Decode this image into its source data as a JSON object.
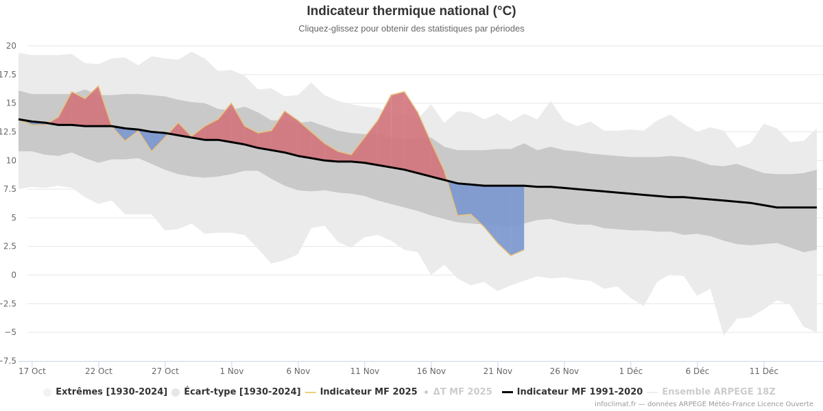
{
  "header": {
    "title": "Indicateur thermique national (°C)",
    "subtitle": "Cliquez-glissez pour obtenir des statistiques par périodes"
  },
  "credits": "infoclimat.fr — données ARPEGE Météo-France Licence Ouverte",
  "colors": {
    "extremes": "#ebebeb",
    "ecart_type": "#c9c9c9",
    "mf2025_line": "#e8c07a",
    "warm_anomaly": "#d1737a",
    "cold_anomaly": "#7a97cf",
    "normal_line": "#000000",
    "grid": "#e6e6e6",
    "legend_hidden": "#cccccc"
  },
  "legend": [
    {
      "label": "Extrêmes [1930-2024]",
      "symbol": "dot",
      "color": "#f2f2f2",
      "hidden": false
    },
    {
      "label": "Écart-type [1930-2024]",
      "symbol": "dot",
      "color": "#e6e6e6",
      "hidden": false
    },
    {
      "label": "Indicateur MF 2025",
      "symbol": "line",
      "color": "#e8d27a",
      "hidden": false
    },
    {
      "label": "ΔT MF 2025",
      "symbol": "small-dot",
      "color": "#cccccc",
      "hidden": true
    },
    {
      "label": "Indicateur MF 1991-2020",
      "symbol": "line-thick",
      "color": "#000000",
      "hidden": false
    },
    {
      "label": "Ensemble ARPEGE 18Z",
      "symbol": "line",
      "color": "#eeeeee",
      "hidden": true
    }
  ],
  "chart_data": {
    "type": "area",
    "title": "Indicateur thermique national (°C)",
    "subtitle": "Cliquez-glissez pour obtenir des statistiques par périodes",
    "xlabel": "",
    "ylabel": "",
    "ylim": [
      -7.5,
      20
    ],
    "yticks": [
      20,
      17.5,
      15,
      12.5,
      10,
      7.5,
      5,
      2.5,
      0,
      -2.5,
      -5,
      -7.5
    ],
    "ytick_labels": [
      "20",
      "17.5",
      "15",
      "12.5",
      "10",
      "7.5",
      "5",
      "2.5",
      "0",
      "−2.5",
      "−5",
      "−7.5"
    ],
    "x_start": "16 Oct",
    "x_step_days": 1,
    "xticks": [
      {
        "day_index": 1,
        "label": "17 Oct"
      },
      {
        "day_index": 6,
        "label": "22 Oct"
      },
      {
        "day_index": 11,
        "label": "27 Oct"
      },
      {
        "day_index": 16,
        "label": "1 Nov"
      },
      {
        "day_index": 21,
        "label": "6 Nov"
      },
      {
        "day_index": 26,
        "label": "11 Nov"
      },
      {
        "day_index": 31,
        "label": "16 Nov"
      },
      {
        "day_index": 36,
        "label": "21 Nov"
      },
      {
        "day_index": 41,
        "label": "26 Nov"
      },
      {
        "day_index": 46,
        "label": "1 Déc"
      },
      {
        "day_index": 51,
        "label": "6 Déc"
      },
      {
        "day_index": 56,
        "label": "11 Déc"
      }
    ],
    "grid": true,
    "legend_position": "bottom",
    "series": [
      {
        "name": "Extrêmes [1930-2024]",
        "kind": "arearange",
        "high": [
          19.4,
          19.2,
          19.2,
          19.2,
          19.3,
          18.5,
          18.4,
          18.9,
          19.0,
          18.3,
          19.1,
          18.9,
          18.8,
          19.5,
          18.9,
          17.8,
          17.9,
          17.4,
          16.2,
          16.3,
          15.6,
          15.7,
          16.8,
          15.7,
          15.2,
          14.9,
          14.7,
          14.6,
          14.2,
          14.0,
          13.6,
          14.9,
          13.3,
          14.3,
          14.2,
          13.6,
          14.1,
          13.4,
          14.1,
          13.6,
          15.2,
          13.5,
          13.0,
          13.4,
          12.6,
          12.6,
          12.7,
          12.6,
          13.5,
          14.0,
          13.2,
          12.5,
          12.9,
          12.6,
          11.1,
          11.5,
          13.2,
          12.8,
          11.6,
          11.7,
          12.8
        ],
        "low": [
          7.5,
          7.7,
          7.6,
          7.8,
          7.6,
          6.8,
          6.2,
          6.5,
          5.3,
          5.3,
          5.3,
          3.9,
          4.0,
          4.5,
          3.6,
          3.7,
          3.7,
          3.5,
          2.3,
          1.0,
          1.3,
          1.8,
          4.1,
          4.3,
          2.9,
          2.4,
          3.3,
          3.5,
          3.0,
          2.2,
          2.0,
          0.0,
          0.9,
          -0.3,
          -0.9,
          -0.6,
          -1.4,
          -0.9,
          -0.5,
          -0.1,
          -0.3,
          -0.2,
          -0.4,
          -0.5,
          -1.2,
          -1.0,
          -2.0,
          -2.7,
          -0.6,
          0.1,
          -0.1,
          -1.8,
          -1.2,
          -5.3,
          -3.8,
          -3.7,
          -3.0,
          -2.2,
          -2.6,
          -4.5,
          -5.0
        ]
      },
      {
        "name": "Écart-type [1930-2024]",
        "kind": "arearange",
        "high": [
          16.1,
          15.8,
          15.8,
          15.8,
          15.8,
          16.2,
          15.7,
          15.7,
          15.8,
          15.8,
          15.7,
          15.6,
          15.3,
          15.1,
          15.0,
          14.5,
          14.4,
          14.7,
          14.2,
          13.5,
          13.5,
          13.3,
          13.4,
          13.0,
          12.6,
          12.4,
          12.3,
          12.3,
          12.0,
          11.9,
          11.9,
          12.0,
          11.2,
          10.9,
          10.9,
          10.9,
          11.0,
          11.0,
          11.5,
          10.9,
          11.2,
          10.9,
          10.8,
          10.6,
          10.5,
          10.4,
          10.3,
          10.3,
          10.3,
          10.4,
          10.3,
          10.0,
          9.6,
          9.5,
          9.7,
          9.3,
          8.9,
          8.8,
          8.8,
          8.9,
          9.2
        ],
        "low": [
          10.8,
          10.8,
          10.5,
          10.4,
          10.7,
          10.2,
          9.8,
          10.1,
          10.1,
          10.2,
          9.7,
          9.2,
          8.8,
          8.6,
          8.5,
          8.6,
          8.8,
          9.1,
          9.1,
          8.4,
          7.8,
          7.4,
          7.3,
          7.4,
          7.2,
          7.1,
          6.9,
          6.5,
          6.2,
          5.9,
          5.6,
          5.2,
          4.9,
          4.6,
          4.5,
          4.4,
          4.4,
          4.2,
          4.5,
          4.8,
          4.9,
          4.6,
          4.4,
          4.4,
          4.1,
          4.0,
          3.9,
          3.9,
          3.8,
          3.8,
          3.5,
          3.6,
          3.4,
          3.0,
          2.7,
          2.6,
          2.7,
          2.8,
          2.4,
          2.0,
          2.2
        ]
      },
      {
        "name": "Indicateur MF 2025",
        "kind": "line",
        "values": [
          13.6,
          13.1,
          13.1,
          13.8,
          16.0,
          15.4,
          16.5,
          13.0,
          11.7,
          12.6,
          10.8,
          12.0,
          13.3,
          12.1,
          13.0,
          13.6,
          15.0,
          13.0,
          12.4,
          12.6,
          14.3,
          13.5,
          12.5,
          11.5,
          10.8,
          10.5,
          12.0,
          13.5,
          15.7,
          16.0,
          14.2,
          11.6,
          9.1,
          5.2,
          5.3,
          4.2,
          2.8,
          1.7,
          2.2
        ]
      },
      {
        "name": "Indicateur MF 1991-2020",
        "kind": "line",
        "values": [
          13.6,
          13.4,
          13.3,
          13.1,
          13.1,
          13.0,
          13.0,
          13.0,
          12.8,
          12.7,
          12.5,
          12.4,
          12.2,
          12.0,
          11.8,
          11.8,
          11.6,
          11.4,
          11.1,
          10.9,
          10.7,
          10.4,
          10.2,
          10.0,
          9.9,
          9.9,
          9.8,
          9.6,
          9.4,
          9.2,
          8.9,
          8.6,
          8.3,
          8.0,
          7.9,
          7.8,
          7.8,
          7.8,
          7.8,
          7.7,
          7.7,
          7.6,
          7.5,
          7.4,
          7.3,
          7.2,
          7.1,
          7.0,
          6.9,
          6.8,
          6.8,
          6.7,
          6.6,
          6.5,
          6.4,
          6.3,
          6.1,
          5.9,
          5.9,
          5.9,
          5.9
        ]
      }
    ]
  }
}
